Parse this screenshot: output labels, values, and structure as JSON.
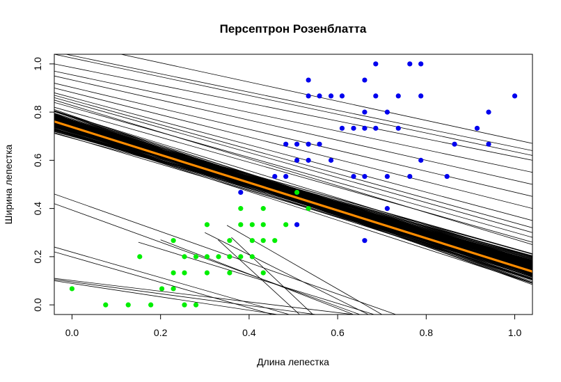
{
  "chart_data": {
    "type": "scatter",
    "title": "Персептрон Розенблатта",
    "xlabel": "Длина лепестка",
    "ylabel": "Ширина лепестка",
    "xlim": [
      -0.04,
      1.04
    ],
    "ylim": [
      -0.04,
      1.04
    ],
    "xticks": [
      "0.0",
      "0.2",
      "0.4",
      "0.6",
      "0.8",
      "1.0"
    ],
    "yticks": [
      "0.0",
      "0.2",
      "0.4",
      "0.6",
      "0.8",
      "1.0"
    ],
    "grid": false,
    "colors": {
      "class1": "#00ee00",
      "class2": "#0000ee",
      "final_line": "#ff8c00",
      "lines": "#000000"
    },
    "series": [
      {
        "points": [
          [
            0.0,
            0.067
          ],
          [
            0.076,
            0.0
          ],
          [
            0.127,
            0.0
          ],
          [
            0.178,
            0.0
          ],
          [
            0.153,
            0.2
          ],
          [
            0.203,
            0.067
          ],
          [
            0.229,
            0.067
          ],
          [
            0.229,
            0.133
          ],
          [
            0.229,
            0.267
          ],
          [
            0.254,
            0.0
          ],
          [
            0.254,
            0.133
          ],
          [
            0.254,
            0.2
          ],
          [
            0.28,
            0.0
          ],
          [
            0.28,
            0.2
          ],
          [
            0.305,
            0.133
          ],
          [
            0.305,
            0.2
          ],
          [
            0.305,
            0.333
          ],
          [
            0.331,
            0.2
          ],
          [
            0.356,
            0.133
          ],
          [
            0.356,
            0.2
          ],
          [
            0.356,
            0.267
          ],
          [
            0.381,
            0.2
          ],
          [
            0.381,
            0.333
          ],
          [
            0.381,
            0.4
          ],
          [
            0.407,
            0.2
          ],
          [
            0.407,
            0.267
          ],
          [
            0.407,
            0.333
          ],
          [
            0.432,
            0.133
          ],
          [
            0.432,
            0.267
          ],
          [
            0.432,
            0.333
          ],
          [
            0.432,
            0.4
          ],
          [
            0.458,
            0.267
          ],
          [
            0.483,
            0.333
          ],
          [
            0.508,
            0.467
          ],
          [
            0.534,
            0.4
          ]
        ]
      },
      {
        "points": [
          [
            0.381,
            0.467
          ],
          [
            0.458,
            0.533
          ],
          [
            0.483,
            0.533
          ],
          [
            0.483,
            0.667
          ],
          [
            0.508,
            0.333
          ],
          [
            0.508,
            0.6
          ],
          [
            0.508,
            0.667
          ],
          [
            0.534,
            0.6
          ],
          [
            0.534,
            0.667
          ],
          [
            0.534,
            0.867
          ],
          [
            0.534,
            0.933
          ],
          [
            0.559,
            0.667
          ],
          [
            0.559,
            0.867
          ],
          [
            0.585,
            0.6
          ],
          [
            0.585,
            0.867
          ],
          [
            0.61,
            0.733
          ],
          [
            0.61,
            0.867
          ],
          [
            0.636,
            0.533
          ],
          [
            0.636,
            0.733
          ],
          [
            0.661,
            0.267
          ],
          [
            0.661,
            0.533
          ],
          [
            0.661,
            0.733
          ],
          [
            0.661,
            0.8
          ],
          [
            0.661,
            0.933
          ],
          [
            0.686,
            0.733
          ],
          [
            0.686,
            0.867
          ],
          [
            0.686,
            1.0
          ],
          [
            0.712,
            0.4
          ],
          [
            0.712,
            0.533
          ],
          [
            0.712,
            0.8
          ],
          [
            0.737,
            0.733
          ],
          [
            0.737,
            0.867
          ],
          [
            0.763,
            0.533
          ],
          [
            0.763,
            1.0
          ],
          [
            0.788,
            0.6
          ],
          [
            0.788,
            0.867
          ],
          [
            0.788,
            1.0
          ],
          [
            0.847,
            0.533
          ],
          [
            0.864,
            0.667
          ],
          [
            0.915,
            0.733
          ],
          [
            0.941,
            0.667
          ],
          [
            0.941,
            0.8
          ],
          [
            1.0,
            0.867
          ]
        ]
      }
    ],
    "final_line": [
      [
        -0.04,
        0.761
      ],
      [
        1.04,
        0.138
      ]
    ]
  }
}
